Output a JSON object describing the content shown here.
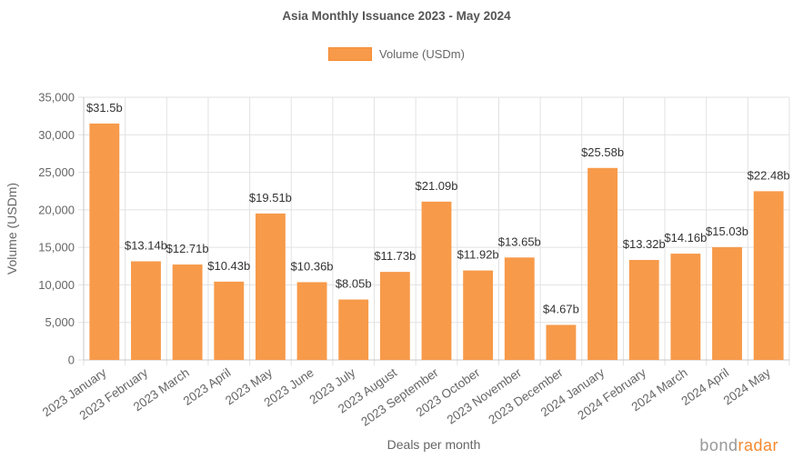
{
  "chart_data": {
    "type": "bar",
    "title": "Asia Monthly Issuance 2023 - May 2024",
    "xlabel": "Deals per month",
    "ylabel": "Volume (USDm)",
    "ylim": [
      0,
      35000
    ],
    "yticks": [
      "0",
      "5,000",
      "10,000",
      "15,000",
      "20,000",
      "25,000",
      "30,000",
      "35,000"
    ],
    "grid": true,
    "legend_position": "top",
    "categories": [
      "2023 January",
      "2023 February",
      "2023 March",
      "2023 April",
      "2023 May",
      "2023 June",
      "2023 July",
      "2023 August",
      "2023 September",
      "2023 October",
      "2023 November",
      "2023 December",
      "2024 January",
      "2024 February",
      "2024 March",
      "2024 April",
      "2024 May"
    ],
    "series": [
      {
        "name": "Volume (USDm)",
        "color": "#f79a4a",
        "values": [
          31500,
          13140,
          12710,
          10430,
          19510,
          10360,
          8050,
          11730,
          21090,
          11920,
          13650,
          4670,
          25580,
          13320,
          14160,
          15030,
          22480
        ],
        "labels": [
          "$31.5b",
          "$13.14b",
          "$12.71b",
          "$10.43b",
          "$19.51b",
          "$10.36b",
          "$8.05b",
          "$11.73b",
          "$21.09b",
          "$11.92b",
          "$13.65b",
          "$4.67b",
          "$25.58b",
          "$13.32b",
          "$14.16b",
          "$15.03b",
          "$22.48b"
        ]
      }
    ]
  },
  "watermark": {
    "brand_part1": "bond",
    "brand_part2": "radar"
  }
}
